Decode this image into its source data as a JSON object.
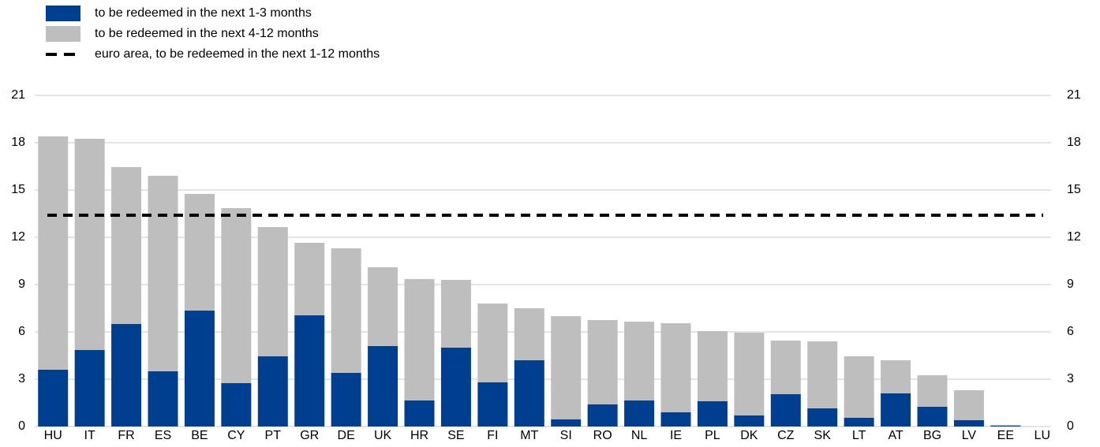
{
  "chart_data": {
    "type": "stacked-bar",
    "categories": [
      "HU",
      "IT",
      "FR",
      "ES",
      "BE",
      "CY",
      "PT",
      "GR",
      "DE",
      "UK",
      "HR",
      "SE",
      "FI",
      "MT",
      "SI",
      "RO",
      "NL",
      "IE",
      "PL",
      "DK",
      "CZ",
      "SK",
      "LT",
      "AT",
      "BG",
      "LV",
      "EE",
      "LU"
    ],
    "series": [
      {
        "name": "to be redeemed in the next 1-3 months",
        "color": "#003f8f",
        "values": [
          3.6,
          4.85,
          6.5,
          3.5,
          7.35,
          2.75,
          4.45,
          7.05,
          3.4,
          5.1,
          1.65,
          5.0,
          2.8,
          4.2,
          0.45,
          1.4,
          1.65,
          0.9,
          1.6,
          0.7,
          2.05,
          1.15,
          0.55,
          2.1,
          1.25,
          0.4,
          0.05,
          0
        ]
      },
      {
        "name": "to be redeemed in the next 4-12 months",
        "color": "#bebebe",
        "values": [
          14.8,
          13.4,
          9.95,
          12.4,
          7.4,
          11.1,
          8.2,
          4.6,
          7.9,
          5.0,
          7.7,
          4.3,
          5.0,
          3.3,
          6.55,
          5.35,
          5.0,
          5.65,
          4.45,
          5.25,
          3.4,
          4.25,
          3.9,
          2.1,
          2.0,
          1.9,
          0.05,
          0
        ]
      }
    ],
    "reference_line": {
      "name": "euro area, to be redeemed in the next 1-12 months",
      "value": 13.4,
      "color": "#000000"
    },
    "ylim": [
      0,
      21
    ],
    "yticks": [
      0,
      3,
      6,
      9,
      12,
      15,
      18,
      21
    ],
    "grid": true
  }
}
